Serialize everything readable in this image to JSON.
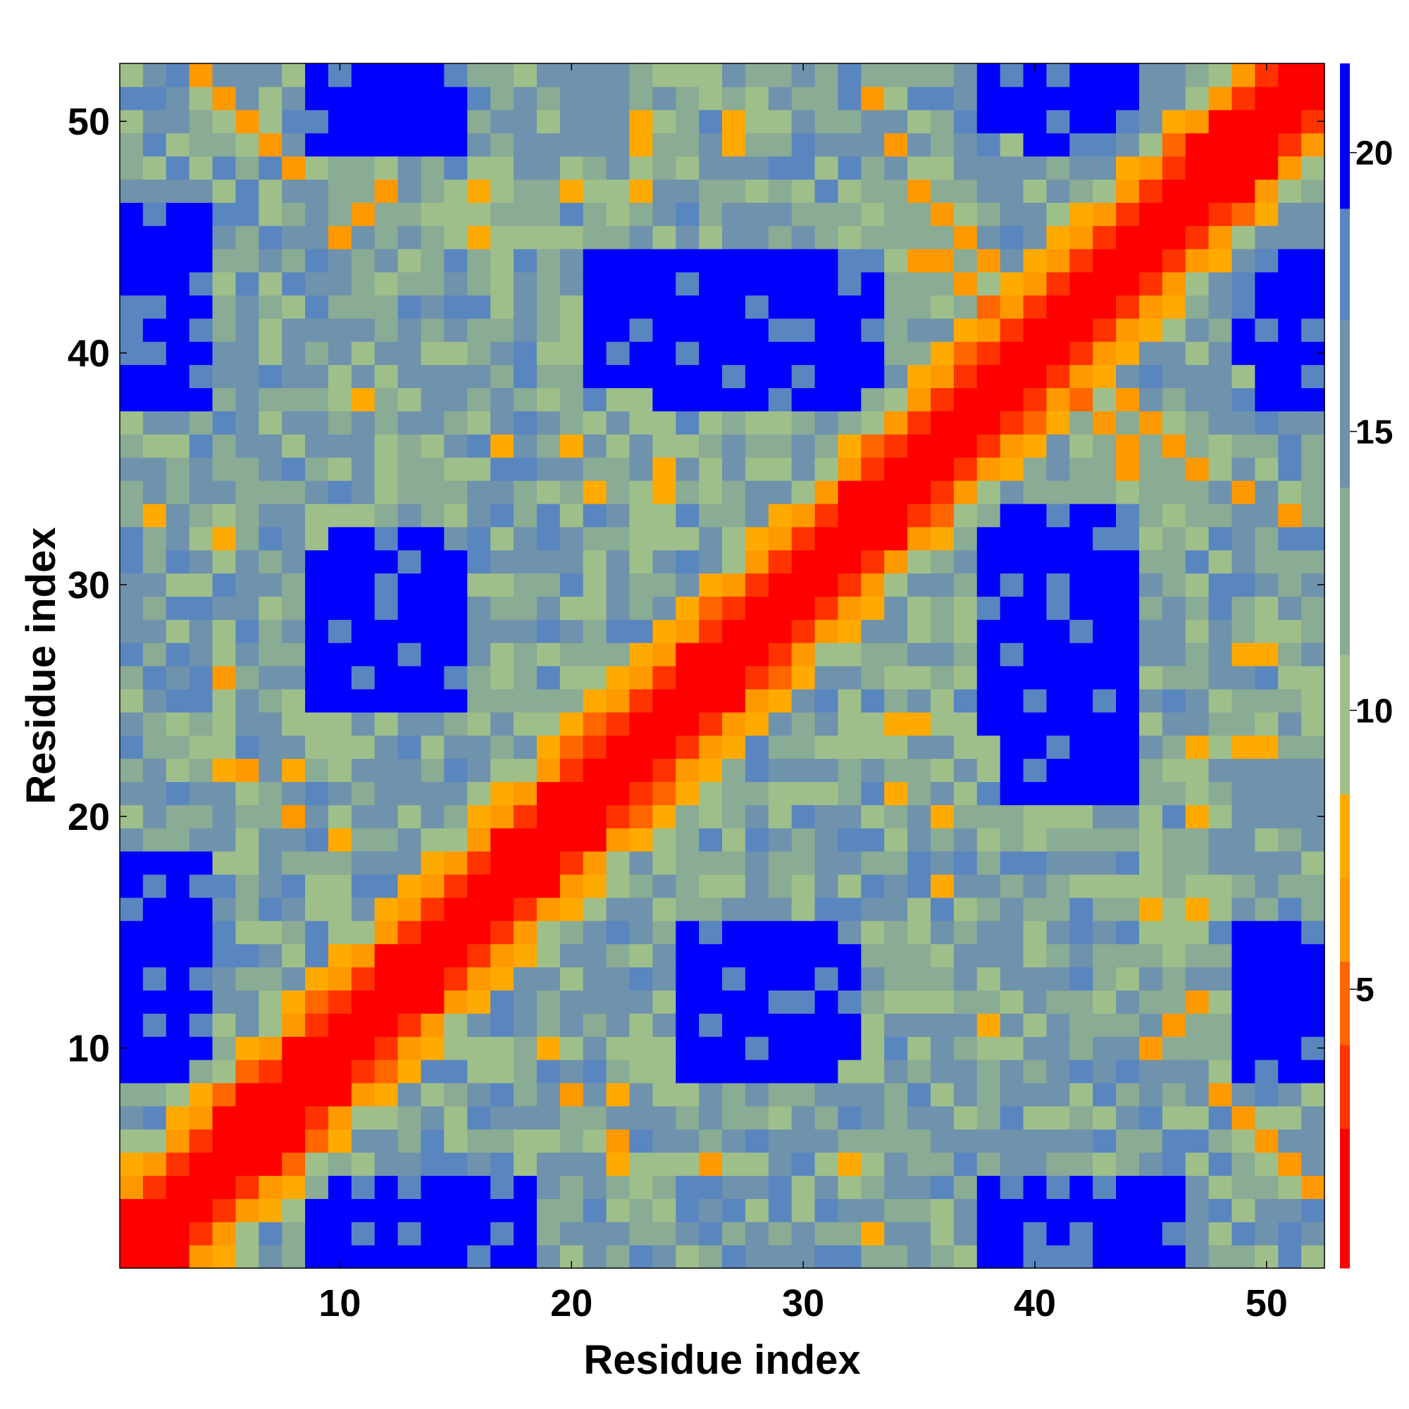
{
  "chart_data": {
    "type": "heatmap",
    "title": "",
    "xlabel": "Residue index",
    "ylabel": "Residue index",
    "n": 52,
    "xlim": [
      0.5,
      52.5
    ],
    "ylim": [
      0.5,
      52.5
    ],
    "x_ticks": [
      10,
      20,
      30,
      40,
      50
    ],
    "y_ticks": [
      10,
      20,
      30,
      40,
      50
    ],
    "colorbar": {
      "ticks": [
        5,
        10,
        15,
        20
      ],
      "range": [
        0,
        21.6
      ],
      "colors": [
        "#ff0000",
        "#ff3300",
        "#ff6600",
        "#ff9900",
        "#ffaa00",
        "#9fbf8a",
        "#8aab94",
        "#6f92ad",
        "#5a86c0",
        "#0000ff"
      ],
      "bounds": [
        0,
        2.5,
        4.0,
        5.5,
        7.0,
        8.5,
        11.0,
        14.0,
        17.0,
        19.0,
        21.6
      ]
    },
    "symmetric": true,
    "description_of_values": "Matrix value v(i,j) in colorbar units; diagonal and near-diagonal small (red/orange), distant residue pairs large (blue). Values listed as contact clusters.",
    "helix_band": {
      "main_diag_value": 1,
      "near_diag_value_1": 2,
      "near_diag_value_2": 5,
      "near_diag_value_3": 7
    },
    "far_blocks": [
      {
        "i": [
          1,
          4
        ],
        "j": [
          9,
          18
        ],
        "value": 21
      },
      {
        "i": [
          1,
          4
        ],
        "j": [
          38,
          46
        ],
        "value": 21
      },
      {
        "i": [
          1,
          2
        ],
        "j": [
          9,
          12
        ],
        "value": 21
      },
      {
        "i": [
          10,
          14
        ],
        "j": [
          1,
          3
        ],
        "value": 21
      },
      {
        "i": [
          10,
          14
        ],
        "j": [
          26,
          32
        ],
        "value": 21
      },
      {
        "i": [
          10,
          14
        ],
        "j": [
          50,
          52
        ],
        "value": 21
      },
      {
        "i": [
          38,
          44
        ],
        "j": [
          1,
          4
        ],
        "value": 21
      },
      {
        "i": [
          38,
          44
        ],
        "j": [
          24,
          33
        ],
        "value": 21
      },
      {
        "i": [
          38,
          44
        ],
        "j": [
          50,
          52
        ],
        "value": 21
      },
      {
        "i": [
          25,
          31
        ],
        "j": [
          9,
          15
        ],
        "value": 21
      },
      {
        "i": [
          21,
          32
        ],
        "j": [
          39,
          44
        ],
        "value": 21
      },
      {
        "i": [
          49,
          52
        ],
        "j": [
          9,
          15
        ],
        "value": 21
      },
      {
        "i": [
          49,
          52
        ],
        "j": [
          40,
          44
        ],
        "value": 21
      }
    ],
    "off_contacts": [
      {
        "i": 44,
        "j": 35,
        "value": 6
      },
      {
        "i": 44,
        "j": 36,
        "value": 6
      },
      {
        "i": 43,
        "j": 37,
        "value": 6
      },
      {
        "i": 42,
        "j": 38,
        "value": 5
      },
      {
        "i": 12,
        "j": 47,
        "value": 6
      },
      {
        "i": 11,
        "j": 46,
        "value": 6
      },
      {
        "i": 10,
        "j": 45,
        "value": 6
      },
      {
        "i": 8,
        "j": 48,
        "value": 6
      },
      {
        "i": 7,
        "j": 49,
        "value": 6
      },
      {
        "i": 6,
        "j": 50,
        "value": 6
      },
      {
        "i": 5,
        "j": 51,
        "value": 6
      },
      {
        "i": 4,
        "j": 52,
        "value": 6
      },
      {
        "i": 36,
        "j": 46,
        "value": 6
      },
      {
        "i": 35,
        "j": 47,
        "value": 6
      },
      {
        "i": 34,
        "j": 49,
        "value": 6
      },
      {
        "i": 33,
        "j": 51,
        "value": 6
      },
      {
        "i": 37,
        "j": 45,
        "value": 6
      },
      {
        "i": 38,
        "j": 44,
        "value": 6
      },
      {
        "i": 24,
        "j": 34,
        "value": 7
      },
      {
        "i": 24,
        "j": 35,
        "value": 7
      },
      {
        "i": 21,
        "j": 34,
        "value": 7
      },
      {
        "i": 20,
        "j": 36,
        "value": 7
      },
      {
        "i": 22,
        "j": 5,
        "value": 7
      },
      {
        "i": 22,
        "j": 6,
        "value": 6
      },
      {
        "i": 22,
        "j": 8,
        "value": 7
      },
      {
        "i": 20,
        "j": 8,
        "value": 6
      },
      {
        "i": 19,
        "j": 10,
        "value": 7
      },
      {
        "i": 26,
        "j": 5,
        "value": 6
      },
      {
        "i": 50,
        "j": 23,
        "value": 7
      },
      {
        "i": 50,
        "j": 27,
        "value": 7
      },
      {
        "i": 47,
        "j": 16,
        "value": 7
      },
      {
        "i": 47,
        "j": 20,
        "value": 7
      },
      {
        "i": 36,
        "j": 17,
        "value": 7
      },
      {
        "i": 36,
        "j": 20,
        "value": 7
      },
      {
        "i": 33,
        "j": 2,
        "value": 7
      },
      {
        "i": 32,
        "j": 5,
        "value": 7
      },
      {
        "i": 16,
        "j": 45,
        "value": 7
      },
      {
        "i": 16,
        "j": 47,
        "value": 7
      },
      {
        "i": 11,
        "j": 38,
        "value": 7
      },
      {
        "i": 27,
        "j": 49,
        "value": 7
      },
      {
        "i": 23,
        "j": 47,
        "value": 7
      },
      {
        "i": 23,
        "j": 49,
        "value": 7
      }
    ]
  }
}
